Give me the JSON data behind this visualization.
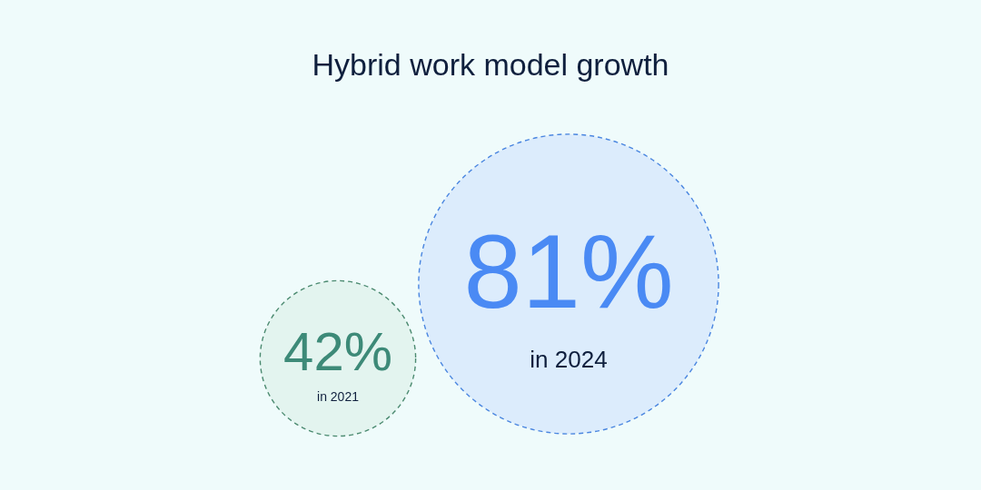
{
  "chart_data": {
    "type": "other",
    "title": "Hybrid work model growth",
    "categories": [
      "in 2021",
      "in 2024"
    ],
    "values": [
      42,
      81
    ],
    "value_labels": [
      "42%",
      "81%"
    ],
    "colors": [
      "#e3f4ef",
      "#dcecfc"
    ]
  }
}
